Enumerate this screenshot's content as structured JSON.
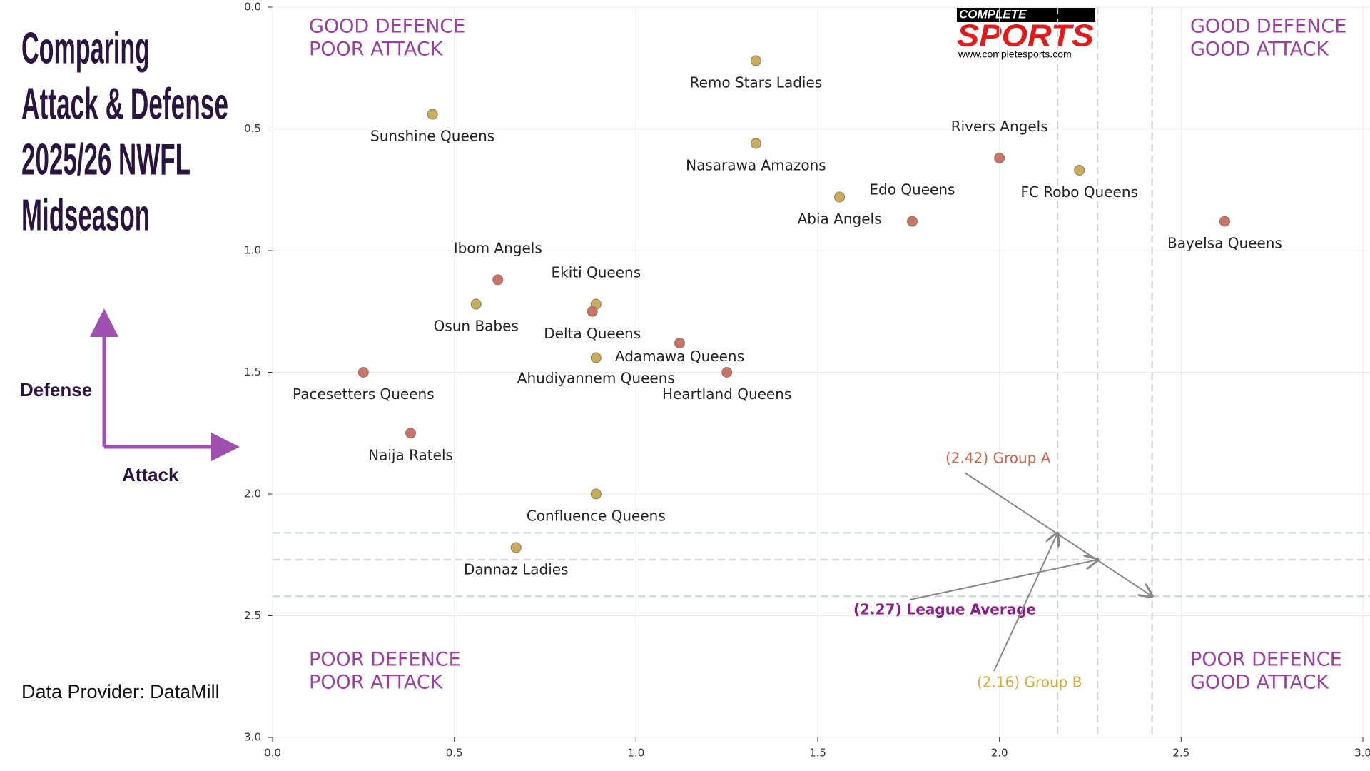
{
  "chart_data": {
    "type": "scatter",
    "title": [
      "Comparing",
      "Attack & Defense",
      "2025/26 NWFL",
      "Midseason"
    ],
    "y_label": "Defense",
    "x_label": "Attack",
    "source": "Data Provider:  DataMill",
    "logo": {
      "top": "COMPLETE",
      "main": "SPORTS",
      "url": "www.completesports.com"
    },
    "quadrants": {
      "top_left": [
        "GOOD DEFENCE",
        "POOR ATTACK"
      ],
      "top_right": [
        "GOOD DEFENCE",
        "GOOD ATTACK"
      ],
      "bottom_left": [
        "POOR DEFENCE",
        "POOR ATTACK"
      ],
      "bottom_right": [
        "POOR DEFENCE",
        "GOOD ATTACK"
      ]
    },
    "xlim": [
      0,
      3.0
    ],
    "ylim": [
      0,
      3.0
    ],
    "y_inverted": true,
    "grid": true,
    "xticks": [
      {
        "value": 0,
        "label": "0.0"
      },
      {
        "value": 0.5,
        "label": "0.5"
      },
      {
        "value": 1.0,
        "label": "1.0"
      },
      {
        "value": 1.5,
        "label": "1.5"
      },
      {
        "value": 2.0,
        "label": "2.0"
      },
      {
        "value": 2.5,
        "label": "2.5"
      },
      {
        "value": 3.0,
        "label": "3.0"
      }
    ],
    "yticks": [
      {
        "value": 0,
        "label": "0.0"
      },
      {
        "value": 0.5,
        "label": "0.5"
      },
      {
        "value": 1.0,
        "label": "1.0"
      },
      {
        "value": 1.5,
        "label": "1.5"
      },
      {
        "value": 2.0,
        "label": "2.0"
      },
      {
        "value": 2.5,
        "label": "2.5"
      },
      {
        "value": 3.0,
        "label": "3.0"
      }
    ],
    "points": [
      {
        "label": "Remo Stars Ladies",
        "x": 1.33,
        "y": 0.22,
        "color": "#c8ad5f"
      },
      {
        "label": "Sunshine Queens",
        "x": 0.44,
        "y": 0.44,
        "color": "#c8ad5f"
      },
      {
        "label": "Nasarawa Amazons",
        "x": 1.33,
        "y": 0.56,
        "color": "#c8ad5f"
      },
      {
        "label": "Rivers Angels",
        "x": 2.0,
        "y": 0.62,
        "color": "#c9736b"
      },
      {
        "label": "FC Robo Queens",
        "x": 2.22,
        "y": 0.67,
        "color": "#c8ad5f"
      },
      {
        "label": "Abia Angels",
        "x": 1.56,
        "y": 0.78,
        "color": "#c8ad5f"
      },
      {
        "label": "Edo Queens",
        "x": 1.76,
        "y": 0.88,
        "color": "#c9736b"
      },
      {
        "label": "Bayelsa Queens",
        "x": 2.62,
        "y": 0.88,
        "color": "#c9736b"
      },
      {
        "label": "Ibom Angels",
        "x": 0.62,
        "y": 1.12,
        "color": "#c9736b"
      },
      {
        "label": "Osun Babes",
        "x": 0.56,
        "y": 1.22,
        "color": "#c8ad5f"
      },
      {
        "label": "Ekiti Queens",
        "x": 0.89,
        "y": 1.22,
        "color": "#c8ad5f"
      },
      {
        "label": "Delta Queens",
        "x": 0.88,
        "y": 1.25,
        "color": "#c9736b"
      },
      {
        "label": "Adamawa Queens",
        "x": 1.12,
        "y": 1.38,
        "color": "#c9736b"
      },
      {
        "label": "Ahudiyannem Queens",
        "x": 0.89,
        "y": 1.44,
        "color": "#c8ad5f"
      },
      {
        "label": "Heartland Queens",
        "x": 1.25,
        "y": 1.5,
        "color": "#c9736b"
      },
      {
        "label": "Pacesetters Queens",
        "x": 0.25,
        "y": 1.5,
        "color": "#c9736b"
      },
      {
        "label": "Naija Ratels",
        "x": 0.38,
        "y": 1.75,
        "color": "#c9736b"
      },
      {
        "label": "Confluence Queens",
        "x": 0.89,
        "y": 2.0,
        "color": "#c8ad5f"
      },
      {
        "label": "Dannaz Ladies",
        "x": 0.67,
        "y": 2.22,
        "color": "#c8ad5f"
      }
    ],
    "reference_lines": [
      {
        "value": 2.42,
        "label": "(2.42) Group A",
        "color": "#d0634a"
      },
      {
        "value": 2.27,
        "label": "(2.27) League Average",
        "color": "#8b1a8b"
      },
      {
        "value": 2.16,
        "label": "(2.16) Group B",
        "color": "#d4a93a"
      }
    ]
  }
}
